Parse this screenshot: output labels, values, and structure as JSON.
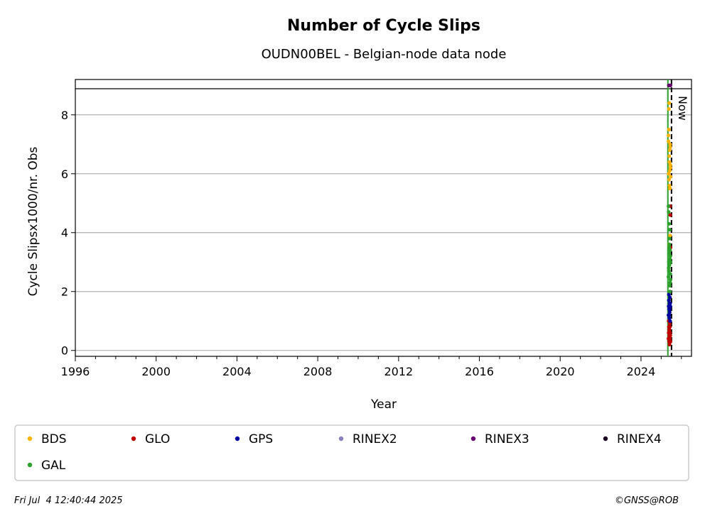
{
  "chart_data": {
    "type": "scatter",
    "title": "Number of Cycle Slips",
    "subtitle": "OUDN00BEL - Belgian-node data node",
    "xlabel": "Year",
    "ylabel": "Cycle Slipsx1000/nr. Obs",
    "xlim": [
      1996,
      2026.5
    ],
    "ylim": [
      -0.2,
      9.2
    ],
    "x_ticks": [
      "1996",
      "2000",
      "2004",
      "2008",
      "2012",
      "2016",
      "2020",
      "2024"
    ],
    "y_ticks": [
      "0",
      "2",
      "4",
      "6",
      "8"
    ],
    "grid": "horizontal",
    "now_marker": {
      "x": 2025.51,
      "label": "Now"
    },
    "start_marker": {
      "x": 2025.33
    },
    "legend_position": "below",
    "series": [
      {
        "name": "BDS",
        "color": "#ffb300",
        "x": [
          2025.36,
          2025.38,
          2025.4,
          2025.42,
          2025.44,
          2025.46,
          2025.37,
          2025.39,
          2025.41,
          2025.43,
          2025.45,
          2025.47,
          2025.38,
          2025.4,
          2025.42,
          2025.44,
          2025.36,
          2025.41,
          2025.45,
          2025.39
        ],
        "y": [
          7.3,
          7.5,
          6.6,
          6.8,
          7.0,
          6.2,
          6.0,
          5.8,
          6.4,
          5.5,
          6.9,
          5.9,
          8.2,
          8.4,
          6.1,
          3.9,
          7.1,
          5.6,
          6.3,
          3.6
        ]
      },
      {
        "name": "GLO",
        "color": "#c00000",
        "x": [
          2025.36,
          2025.37,
          2025.38,
          2025.39,
          2025.4,
          2025.41,
          2025.42,
          2025.43,
          2025.44,
          2025.45,
          2025.46,
          2025.37,
          2025.39,
          2025.41,
          2025.43,
          2025.45,
          2025.44,
          2025.46
        ],
        "y": [
          0.4,
          0.6,
          0.8,
          0.3,
          0.5,
          0.7,
          0.9,
          0.4,
          0.6,
          0.5,
          0.3,
          1.0,
          0.7,
          0.2,
          0.8,
          4.6,
          4.9,
          3.5
        ]
      },
      {
        "name": "GPS",
        "color": "#0000a0",
        "x": [
          2025.36,
          2025.37,
          2025.38,
          2025.39,
          2025.4,
          2025.41,
          2025.42,
          2025.43,
          2025.44,
          2025.45,
          2025.38,
          2025.4,
          2025.42,
          2025.44
        ],
        "y": [
          1.2,
          1.5,
          1.7,
          1.4,
          1.1,
          1.6,
          1.3,
          1.8,
          1.0,
          1.5,
          1.9,
          1.2,
          1.4,
          1.6
        ]
      },
      {
        "name": "RINEX2",
        "color": "#8a7fc0",
        "x": [],
        "y": []
      },
      {
        "name": "RINEX3",
        "color": "#6b0070",
        "x": [
          2025.38,
          2025.42,
          2025.46
        ],
        "y": [
          9.0,
          9.0,
          9.0
        ]
      },
      {
        "name": "RINEX4",
        "color": "#1a0020",
        "x": [],
        "y": []
      },
      {
        "name": "GAL",
        "color": "#2ca02c",
        "x": [
          2025.36,
          2025.37,
          2025.38,
          2025.39,
          2025.4,
          2025.41,
          2025.42,
          2025.43,
          2025.44,
          2025.45,
          2025.46,
          2025.37,
          2025.39,
          2025.41,
          2025.43,
          2025.45,
          2025.38,
          2025.4,
          2025.42,
          2025.44,
          2025.46,
          2025.36
        ],
        "y": [
          2.5,
          2.8,
          3.0,
          3.3,
          3.6,
          2.9,
          2.2,
          3.1,
          3.4,
          2.6,
          2.4,
          4.7,
          4.3,
          3.8,
          2.0,
          3.2,
          2.7,
          3.5,
          4.1,
          2.3,
          3.0,
          4.9
        ]
      }
    ]
  },
  "footer": {
    "timestamp": "Fri Jul  4 12:40:44 2025",
    "copyright": "©GNSS@ROB"
  }
}
